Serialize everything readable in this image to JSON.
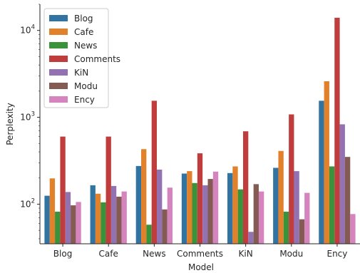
{
  "chart_data": {
    "type": "bar",
    "title": "",
    "xlabel": "Model",
    "ylabel": "Perplexity",
    "yscale": "log",
    "ylim": [
      35,
      20000
    ],
    "yticks": [
      {
        "value": 100,
        "base": "10",
        "exp": "2"
      },
      {
        "value": 1000,
        "base": "10",
        "exp": "3"
      },
      {
        "value": 10000,
        "base": "10",
        "exp": "4"
      }
    ],
    "categories": [
      "Blog",
      "Cafe",
      "News",
      "Comments",
      "KiN",
      "Modu",
      "Ency"
    ],
    "legend_position": "top-left",
    "grid": false,
    "series": [
      {
        "name": "Blog",
        "color": "#3274a1",
        "values": [
          125,
          165,
          275,
          225,
          228,
          262,
          1550
        ]
      },
      {
        "name": "Cafe",
        "color": "#e1812c",
        "values": [
          198,
          132,
          430,
          240,
          272,
          410,
          2600
        ]
      },
      {
        "name": "News",
        "color": "#3a923a",
        "values": [
          82,
          105,
          58,
          175,
          148,
          82,
          272
        ]
      },
      {
        "name": "Comments",
        "color": "#c03d3e",
        "values": [
          600,
          600,
          1550,
          385,
          690,
          1080,
          14000
        ]
      },
      {
        "name": "KiN",
        "color": "#9372b2",
        "values": [
          138,
          162,
          250,
          165,
          48,
          240,
          830
        ]
      },
      {
        "name": "Modu",
        "color": "#845b53",
        "values": [
          97,
          122,
          87,
          195,
          170,
          67,
          350
        ]
      },
      {
        "name": "Ency",
        "color": "#d684bd",
        "values": [
          106,
          140,
          155,
          237,
          140,
          135,
          77
        ]
      }
    ]
  }
}
